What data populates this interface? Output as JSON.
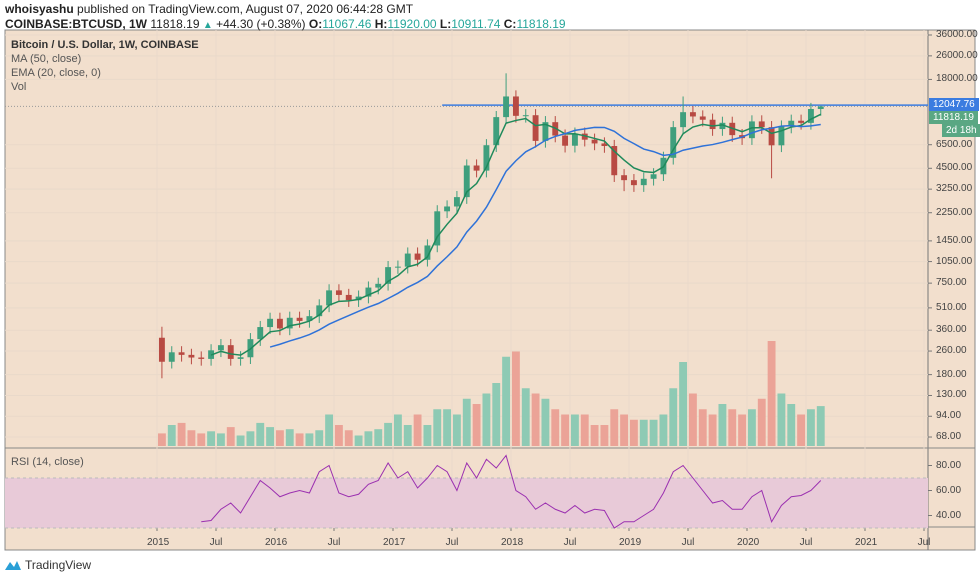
{
  "header": {
    "author": "whoisyashu",
    "published": "published on TradingView.com, August 07, 2020 06:44:28 GMT",
    "symbol": "COINBASE:BTCUSD, 1W",
    "last": "11818.19",
    "change": "+44.30 (+0.38%)",
    "open_label": "O:",
    "open": "11067.46",
    "high_label": "H:",
    "high": "11920.00",
    "low_label": "L:",
    "low": "10911.74",
    "close_label": "C:",
    "close": "11818.19"
  },
  "legend": {
    "title": "Bitcoin / U.S. Dollar, 1W, COINBASE",
    "ma": "MA (50, close)",
    "ema": "EMA (20, close, 0)",
    "vol": "Vol"
  },
  "rsi_label": "RSI (14, close)",
  "tags": {
    "resistance": "12047.76",
    "last_price": "11818.19",
    "countdown": "2d 18h"
  },
  "footer": {
    "logo": "TradingView"
  },
  "colors": {
    "background": "#f2dfcd",
    "up": "#3f9f7d",
    "down": "#b84a43",
    "vol_up": "#8ecab4",
    "vol_down": "#eba397",
    "ma": "#2f72d8",
    "ema": "#1f8a5b",
    "rsi": "#9b30b0",
    "rsi_band": "#e8cad8",
    "resistance": "#3b7ce0"
  },
  "chart_data": [
    {
      "type": "candlestick",
      "scale": "log",
      "ylim": [
        68,
        36000
      ],
      "grid": true,
      "price_ticks": [
        "36000.00",
        "26000.00",
        "18000.00",
        "6500.00",
        "4500.00",
        "3250.00",
        "2250.00",
        "1450.00",
        "1050.00",
        "750.00",
        "510.00",
        "360.00",
        "260.00",
        "180.00",
        "130.00",
        "94.00",
        "68.00"
      ],
      "time_ticks": [
        {
          "label": "2015",
          "date": "2015-01"
        },
        {
          "label": "Jul",
          "date": "2015-07"
        },
        {
          "label": "2016",
          "date": "2016-01"
        },
        {
          "label": "Jul",
          "date": "2016-07"
        },
        {
          "label": "2017",
          "date": "2017-01"
        },
        {
          "label": "Jul",
          "date": "2017-07"
        },
        {
          "label": "2018",
          "date": "2018-01"
        },
        {
          "label": "Jul",
          "date": "2018-07"
        },
        {
          "label": "2019",
          "date": "2019-01"
        },
        {
          "label": "Jul",
          "date": "2019-07"
        },
        {
          "label": "2020",
          "date": "2020-01"
        },
        {
          "label": "Jul",
          "date": "2020-07"
        },
        {
          "label": "2021",
          "date": "2021-01"
        },
        {
          "label": "Jul",
          "date": "2021-07"
        }
      ],
      "start": "2015-01",
      "close": [
        220,
        255,
        245,
        235,
        230,
        263,
        285,
        230,
        236,
        313,
        378,
        430,
        370,
        437,
        416,
        448,
        530,
        670,
        624,
        575,
        608,
        700,
        742,
        963,
        970,
        1190,
        1080,
        1350,
        2300,
        2480,
        2870,
        4700,
        4340,
        6450,
        10000,
        13800,
        10200,
        10300,
        6900,
        9240,
        7500,
        6400,
        7730,
        7030,
        6630,
        6370,
        4040,
        3740,
        3460,
        3820,
        4100,
        5300,
        8550,
        10800,
        10100,
        9600,
        8300,
        9150,
        7550,
        7200,
        9350,
        8550,
        6440,
        8630,
        9450,
        9140,
        11350,
        11818.19
      ],
      "first_open": 320,
      "extremes": [
        {
          "date": "2015-01",
          "low": 170,
          "high": 380
        },
        {
          "date": "2017-12",
          "high": 19800
        },
        {
          "date": "2019-06",
          "high": 13800
        },
        {
          "date": "2020-03",
          "low": 3850
        },
        {
          "date": "2018-12",
          "low": 3150
        },
        {
          "date": "2020-08",
          "high": 11920
        }
      ],
      "volume_level": [
        0.12,
        0.2,
        0.22,
        0.15,
        0.12,
        0.14,
        0.12,
        0.18,
        0.1,
        0.14,
        0.22,
        0.18,
        0.15,
        0.16,
        0.12,
        0.12,
        0.15,
        0.3,
        0.2,
        0.15,
        0.1,
        0.14,
        0.16,
        0.22,
        0.3,
        0.2,
        0.3,
        0.2,
        0.35,
        0.35,
        0.3,
        0.45,
        0.4,
        0.5,
        0.6,
        0.85,
        0.9,
        0.55,
        0.5,
        0.45,
        0.35,
        0.3,
        0.3,
        0.3,
        0.2,
        0.2,
        0.35,
        0.3,
        0.25,
        0.25,
        0.25,
        0.3,
        0.55,
        0.8,
        0.5,
        0.35,
        0.3,
        0.4,
        0.35,
        0.3,
        0.35,
        0.45,
        1.0,
        0.5,
        0.4,
        0.3,
        0.35,
        0.38
      ],
      "resistance": 12047.76,
      "resistance_from": "2017-06"
    },
    {
      "type": "line",
      "title": "RSI (14, close)",
      "ylim": [
        25,
        92
      ],
      "ticks": [
        "80.00",
        "60.00",
        "40.00"
      ],
      "bands": [
        30,
        70
      ],
      "start": "2015-05",
      "values": [
        35,
        36,
        45,
        50,
        42,
        55,
        68,
        62,
        55,
        58,
        60,
        58,
        75,
        80,
        58,
        55,
        57,
        65,
        68,
        82,
        70,
        75,
        62,
        70,
        80,
        75,
        60,
        82,
        70,
        85,
        78,
        88,
        60,
        55,
        45,
        50,
        45,
        42,
        48,
        42,
        45,
        44,
        30,
        35,
        35,
        40,
        45,
        58,
        75,
        80,
        70,
        60,
        50,
        52,
        45,
        45,
        55,
        60,
        35,
        48,
        55,
        56,
        60,
        68
      ]
    }
  ]
}
